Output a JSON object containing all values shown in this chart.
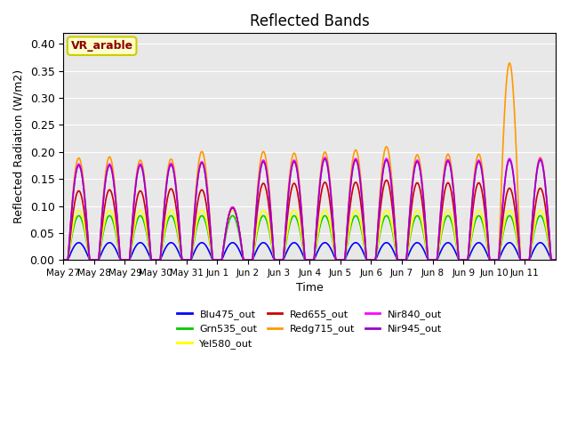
{
  "title": "Reflected Bands",
  "xlabel": "Time",
  "ylabel": "Reflected Radiation (W/m2)",
  "annotation": "VR_arable",
  "ylim": [
    0,
    0.42
  ],
  "yticks": [
    0.0,
    0.05,
    0.1,
    0.15,
    0.2,
    0.25,
    0.3,
    0.35,
    0.4
  ],
  "xtick_labels": [
    "May 27",
    "May 28",
    "May 29",
    "May 30",
    "May 31",
    "Jun 1",
    "Jun 2",
    "Jun 3",
    "Jun 4",
    "Jun 5",
    "Jun 6",
    "Jun 7",
    "Jun 8",
    "Jun 9",
    "Jun 10",
    "Jun 11"
  ],
  "num_days": 16,
  "lines": {
    "Blu475_out": {
      "color": "#0000ff",
      "linewidth": 1.2
    },
    "Grn535_out": {
      "color": "#00cc00",
      "linewidth": 1.2
    },
    "Yel580_out": {
      "color": "#ffff00",
      "linewidth": 1.2
    },
    "Red655_out": {
      "color": "#cc0000",
      "linewidth": 1.2
    },
    "Redg715_out": {
      "color": "#ff9900",
      "linewidth": 1.2
    },
    "Nir840_out": {
      "color": "#ff00ff",
      "linewidth": 1.2
    },
    "Nir945_out": {
      "color": "#9900cc",
      "linewidth": 1.2
    }
  },
  "peak_variations": {
    "Blu475_out": [
      0.032,
      0.032,
      0.032,
      0.032,
      0.032,
      0.032,
      0.032,
      0.032,
      0.032,
      0.032,
      0.032,
      0.032,
      0.032,
      0.032,
      0.032,
      0.032
    ],
    "Grn535_out": [
      0.082,
      0.082,
      0.082,
      0.082,
      0.082,
      0.082,
      0.082,
      0.082,
      0.082,
      0.082,
      0.082,
      0.082,
      0.082,
      0.082,
      0.082,
      0.082
    ],
    "Yel580_out": [
      0.092,
      0.092,
      0.092,
      0.092,
      0.092,
      0.092,
      0.092,
      0.092,
      0.092,
      0.092,
      0.092,
      0.092,
      0.092,
      0.092,
      0.092,
      0.092
    ],
    "Red655_out": [
      0.128,
      0.13,
      0.128,
      0.132,
      0.13,
      0.098,
      0.142,
      0.142,
      0.144,
      0.144,
      0.148,
      0.143,
      0.143,
      0.143,
      0.133,
      0.133
    ],
    "Redg715_out": [
      0.189,
      0.191,
      0.185,
      0.187,
      0.201,
      0.098,
      0.201,
      0.198,
      0.2,
      0.204,
      0.21,
      0.195,
      0.196,
      0.196,
      0.365,
      0.19
    ],
    "Nir840_out": [
      0.178,
      0.178,
      0.178,
      0.179,
      0.182,
      0.098,
      0.185,
      0.185,
      0.19,
      0.188,
      0.188,
      0.185,
      0.186,
      0.185,
      0.188,
      0.188
    ],
    "Nir945_out": [
      0.175,
      0.175,
      0.175,
      0.176,
      0.18,
      0.096,
      0.182,
      0.182,
      0.187,
      0.185,
      0.185,
      0.182,
      0.183,
      0.182,
      0.185,
      0.185
    ]
  },
  "background_color": "#e8e8e8",
  "facecolor": "#ffffff",
  "line_order": [
    "Blu475_out",
    "Grn535_out",
    "Yel580_out",
    "Red655_out",
    "Redg715_out",
    "Nir840_out",
    "Nir945_out"
  ]
}
